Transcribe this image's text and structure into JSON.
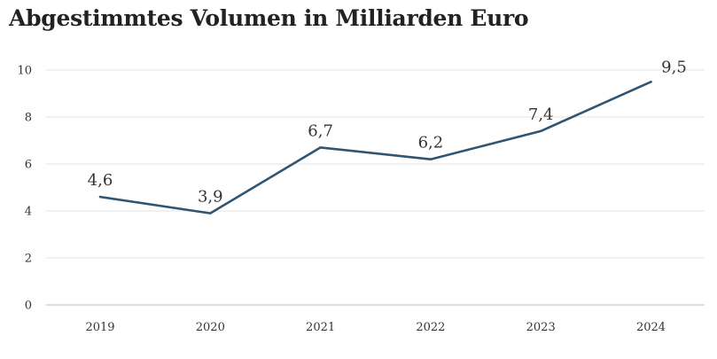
{
  "title": "Abgestimmtes Volumen in Milliarden Euro",
  "colors": {
    "line": "#2f5573",
    "grid": "#e3e3e3",
    "text": "#333333"
  },
  "chart_data": {
    "type": "line",
    "title": "Abgestimmtes Volumen in Milliarden Euro",
    "xlabel": "",
    "ylabel": "",
    "categories": [
      "2019",
      "2020",
      "2021",
      "2022",
      "2023",
      "2024"
    ],
    "series": [
      {
        "values": [
          4.6,
          3.9,
          6.7,
          6.2,
          7.4,
          9.5
        ],
        "labels": [
          "4,6",
          "3,9",
          "6,7",
          "6,2",
          "7,4",
          "9,5"
        ]
      }
    ],
    "ylim": [
      0,
      10
    ],
    "yticks": [
      0,
      2,
      4,
      6,
      8,
      10
    ],
    "ytick_labels": [
      "0",
      "2",
      "4",
      "6",
      "8",
      "10"
    ],
    "grid": true,
    "legend": "none"
  }
}
